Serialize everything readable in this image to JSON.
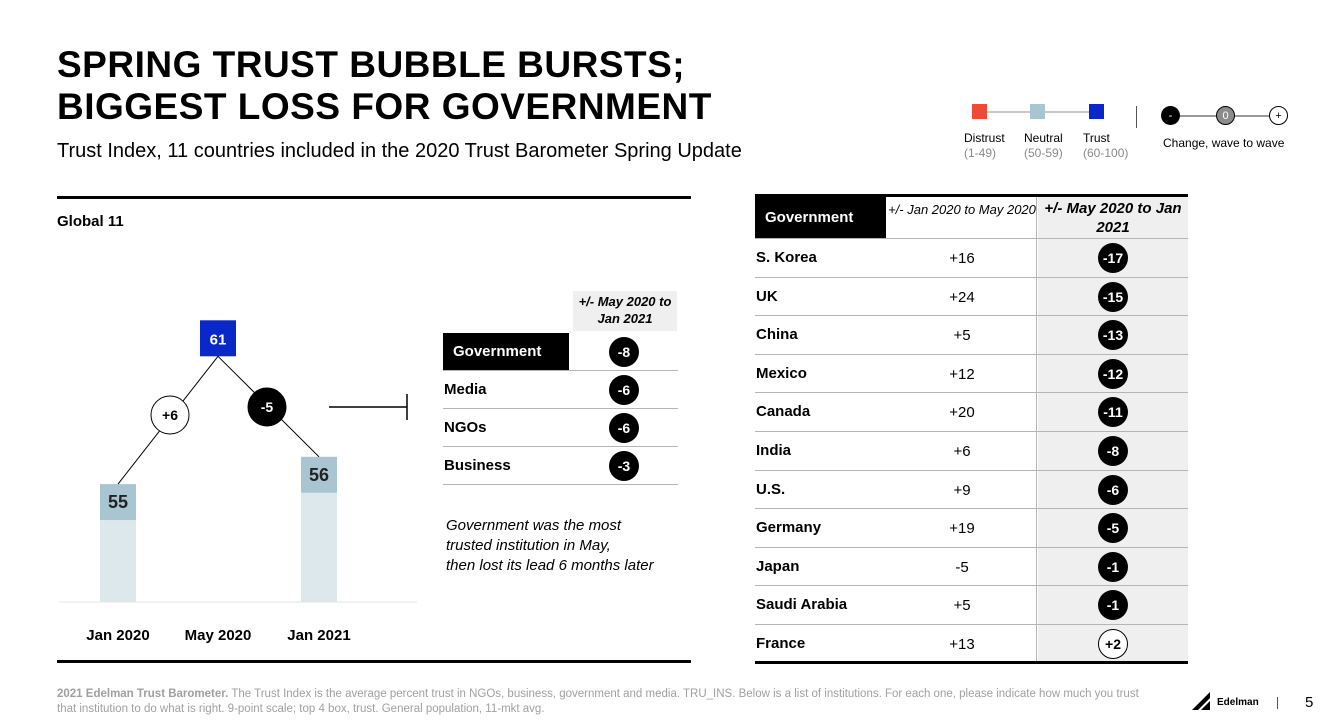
{
  "header": {
    "title_line1": "SPRING TRUST BUBBLE BURSTS;",
    "title_line2": "BIGGEST LOSS FOR GOVERNMENT",
    "subtitle": "Trust Index, 11 countries included in the 2020 Trust Barometer Spring Update"
  },
  "legend": {
    "distrust": "Distrust",
    "distrust_range": "(1-49)",
    "neutral": "Neutral",
    "neutral_range": "(50-59)",
    "trust": "Trust",
    "trust_range": "(60-100)",
    "minus": "-",
    "zero": "0",
    "plus": "+",
    "change_label": "Change, wave to wave",
    "colors": {
      "distrust": "#f04a37",
      "neutral": "#a9c5d1",
      "trust": "#0a28c8"
    }
  },
  "left_panel": {
    "label": "Global 11"
  },
  "chart_data": {
    "type": "bar",
    "categories": [
      "Jan 2020",
      "May 2020",
      "Jan 2021"
    ],
    "values": [
      55,
      61,
      56
    ],
    "changes": [
      "+6",
      "-5"
    ]
  },
  "institutions_table": {
    "header": "+/- May 2020 to Jan 2021",
    "rows": [
      {
        "label": "Government",
        "change": "-8"
      },
      {
        "label": "Media",
        "change": "-6"
      },
      {
        "label": "NGOs",
        "change": "-6"
      },
      {
        "label": "Business",
        "change": "-3"
      }
    ]
  },
  "note": {
    "line1": "Government was the most",
    "line2": "trusted institution in May,",
    "line3": "then lost its lead 6 months later"
  },
  "country_table": {
    "col1": "Government",
    "col2": "+/- Jan 2020 to May 2020",
    "col3": "+/- May 2020 to Jan 2021",
    "rows": [
      {
        "country": "S. Korea",
        "c1": "+16",
        "c2": "-17"
      },
      {
        "country": "UK",
        "c1": "+24",
        "c2": "-15"
      },
      {
        "country": "China",
        "c1": "+5",
        "c2": "-13"
      },
      {
        "country": "Mexico",
        "c1": "+12",
        "c2": "-12"
      },
      {
        "country": "Canada",
        "c1": "+20",
        "c2": "-11"
      },
      {
        "country": "India",
        "c1": "+6",
        "c2": "-8"
      },
      {
        "country": "U.S.",
        "c1": "+9",
        "c2": "-6"
      },
      {
        "country": "Germany",
        "c1": "+19",
        "c2": "-5"
      },
      {
        "country": "Japan",
        "c1": "-5",
        "c2": "-1"
      },
      {
        "country": "Saudi Arabia",
        "c1": "+5",
        "c2": "-1"
      },
      {
        "country": "France",
        "c1": "+13",
        "c2": "+2"
      }
    ]
  },
  "footer": {
    "source": "2021 Edelman Trust Barometer.",
    "text": "The Trust Index is the average percent trust in NGOs, business, government and media. TRU_INS. Below is a list of institutions. For each one, please indicate how much you trust that institution to do what is right. 9-point scale; top 4 box, trust. General population, 11-mkt avg.",
    "brand": "Edelman",
    "page": "5"
  }
}
